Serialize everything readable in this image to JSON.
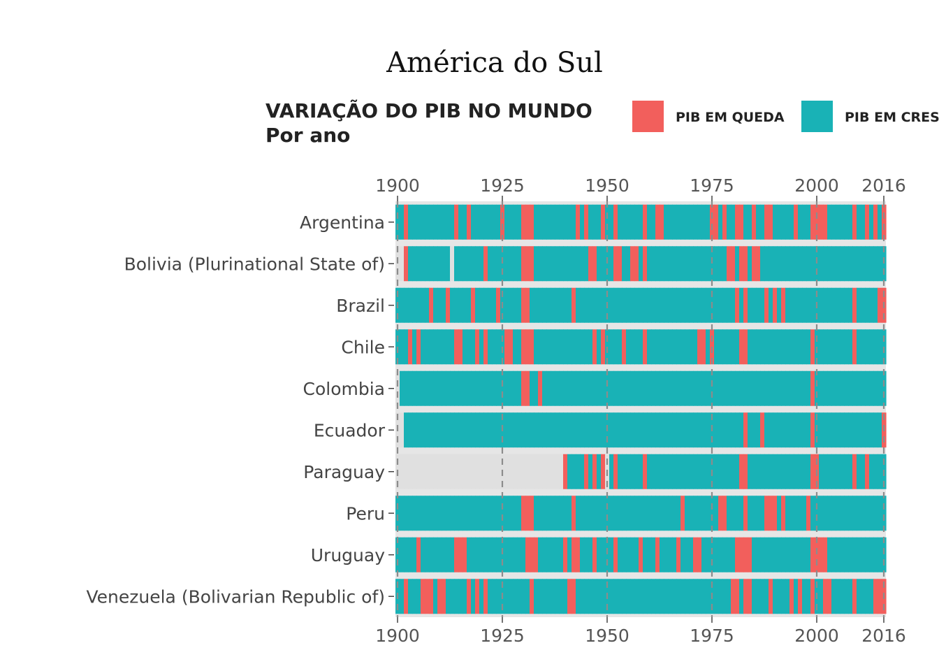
{
  "header": {
    "title": "América do Sul",
    "subtitle_line1": "VARIAÇÃO DO PIB NO MUNDO",
    "subtitle_line2": "Por ano"
  },
  "legend": [
    {
      "label": "PIB EM QUEDA",
      "color": "#F25F5C"
    },
    {
      "label": "PIB EM CRESCIMENTO",
      "color": "#19B2B6"
    }
  ],
  "chart_data": {
    "type": "heatmap",
    "x_range": [
      1900,
      2016
    ],
    "x_ticks": [
      1900,
      1925,
      1950,
      1975,
      2000,
      2016
    ],
    "colors": {
      "decline": "#F25F5C",
      "growth": "#19B2B6",
      "missing": "#E0E0E0",
      "panel": "#E6E6E6",
      "gridline": "#8C8C8C"
    },
    "rows": [
      {
        "country": "Argentina",
        "data_start": 1900,
        "data_gaps": [],
        "decline_years": [
          1902,
          1914,
          1917,
          1925,
          1930,
          1931,
          1932,
          1943,
          1945,
          1949,
          1952,
          1959,
          1962,
          1963,
          1975,
          1976,
          1978,
          1981,
          1982,
          1985,
          1988,
          1989,
          1995,
          1999,
          2000,
          2001,
          2002,
          2009,
          2012,
          2014,
          2016
        ]
      },
      {
        "country": "Bolivia (Plurinational State of)",
        "data_start": 1902,
        "data_gaps": [
          1913
        ],
        "decline_years": [
          1902,
          1921,
          1930,
          1931,
          1932,
          1946,
          1947,
          1952,
          1953,
          1956,
          1957,
          1959,
          1979,
          1980,
          1982,
          1983,
          1985,
          1986
        ]
      },
      {
        "country": "Brazil",
        "data_start": 1900,
        "data_gaps": [],
        "decline_years": [
          1908,
          1912,
          1918,
          1924,
          1930,
          1931,
          1942,
          1981,
          1983,
          1988,
          1990,
          1992,
          2009,
          2015,
          2016
        ]
      },
      {
        "country": "Chile",
        "data_start": 1900,
        "data_gaps": [],
        "decline_years": [
          1903,
          1905,
          1914,
          1915,
          1919,
          1921,
          1926,
          1927,
          1930,
          1931,
          1932,
          1947,
          1949,
          1954,
          1959,
          1972,
          1973,
          1975,
          1982,
          1983,
          1999,
          2009
        ]
      },
      {
        "country": "Colombia",
        "data_start": 1901,
        "data_gaps": [],
        "decline_years": [
          1930,
          1931,
          1934,
          1999
        ]
      },
      {
        "country": "Ecuador",
        "data_start": 1902,
        "data_gaps": [],
        "decline_years": [
          1983,
          1987,
          1999,
          2016
        ]
      },
      {
        "country": "Paraguay",
        "data_start": 1940,
        "data_gaps": [
          1950
        ],
        "decline_years": [
          1940,
          1945,
          1947,
          1949,
          1952,
          1959,
          1982,
          1983,
          1999,
          2000,
          2009,
          2012
        ]
      },
      {
        "country": "Peru",
        "data_start": 1900,
        "data_gaps": [],
        "decline_years": [
          1930,
          1931,
          1932,
          1942,
          1968,
          1977,
          1978,
          1983,
          1988,
          1989,
          1990,
          1992,
          1998
        ]
      },
      {
        "country": "Uruguay",
        "data_start": 1900,
        "data_gaps": [],
        "decline_years": [
          1905,
          1914,
          1915,
          1916,
          1931,
          1932,
          1933,
          1940,
          1942,
          1943,
          1947,
          1952,
          1958,
          1962,
          1967,
          1971,
          1972,
          1981,
          1982,
          1983,
          1984,
          1999,
          2000,
          2001,
          2002
        ]
      },
      {
        "country": "Venezuela (Bolivarian Republic of)",
        "data_start": 1900,
        "data_gaps": [],
        "decline_years": [
          1902,
          1906,
          1907,
          1908,
          1910,
          1911,
          1917,
          1919,
          1921,
          1932,
          1941,
          1942,
          1980,
          1981,
          1983,
          1984,
          1989,
          1994,
          1996,
          1999,
          2002,
          2003,
          2009,
          2014,
          2015,
          2016
        ]
      }
    ]
  }
}
